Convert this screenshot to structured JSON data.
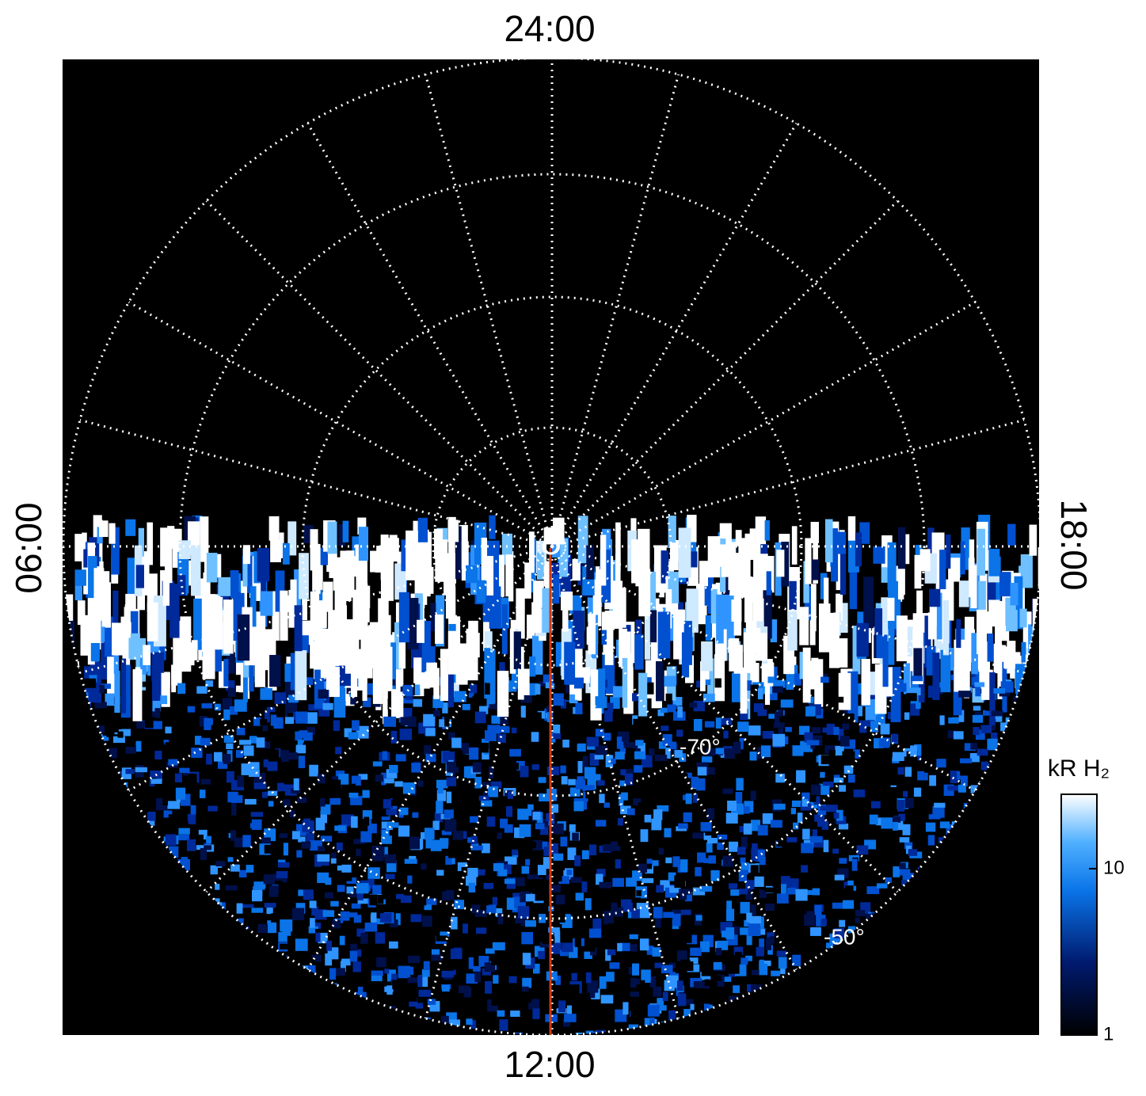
{
  "local_time_labels": {
    "top": "24:00",
    "left": "06:00",
    "bottom": "12:00",
    "right": "18:00"
  },
  "latitude_labels": [
    "-70°",
    "-50°"
  ],
  "colorbar": {
    "title": "kR H₂",
    "scale": "log",
    "lim": [
      1,
      28
    ],
    "ticks": [
      1,
      10
    ]
  }
}
